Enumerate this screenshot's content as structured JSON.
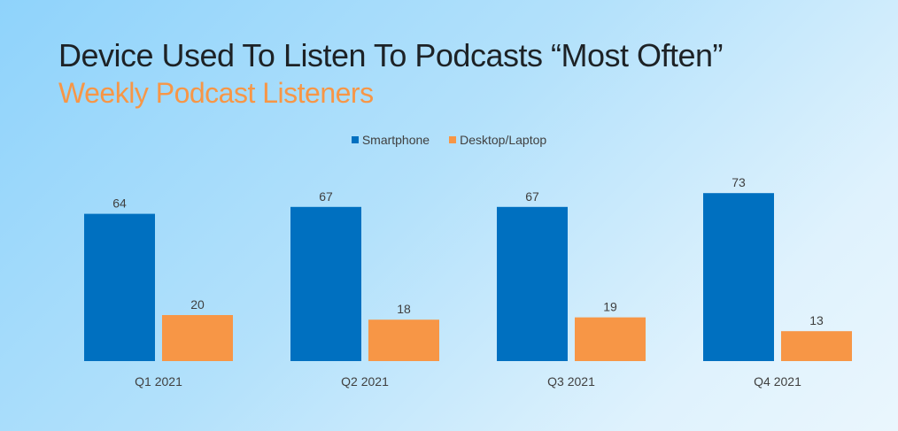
{
  "title": "Device Used To Listen To Podcasts “Most Often”",
  "subtitle": "Weekly Podcast Listeners",
  "colors": {
    "smartphone": "#0070c0",
    "desktop": "#f79646",
    "title": "#1d2226",
    "subtitle": "#f79646"
  },
  "chart_data": {
    "type": "bar",
    "categories": [
      "Q1 2021",
      "Q2 2021",
      "Q3 2021",
      "Q4 2021"
    ],
    "series": [
      {
        "name": "Smartphone",
        "values": [
          64,
          67,
          67,
          73
        ],
        "color": "#0070c0"
      },
      {
        "name": "Desktop/Laptop",
        "values": [
          20,
          18,
          19,
          13
        ],
        "color": "#f79646"
      }
    ],
    "data_labels": true,
    "grid": false,
    "y_axis_visible": false,
    "ylim": [
      0,
      75
    ],
    "legend_position": "top-center"
  }
}
